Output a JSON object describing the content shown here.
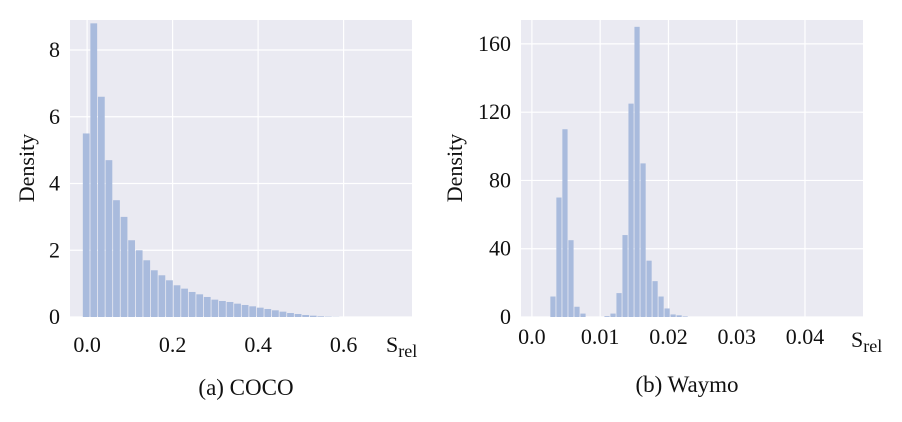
{
  "chart_data": [
    {
      "type": "bar",
      "caption": "(a) COCO",
      "ylabel": "Density",
      "xlabel": "S",
      "xlabel_sub": "rel",
      "xlim": [
        -0.04,
        0.76
      ],
      "ylim": [
        0,
        8.9
      ],
      "xticks": [
        0.0,
        0.2,
        0.4,
        0.6
      ],
      "xtick_labels": [
        "0.0",
        "0.2",
        "0.4",
        "0.6"
      ],
      "yticks": [
        0,
        2,
        4,
        6,
        8
      ],
      "ytick_labels": [
        "0",
        "2",
        "4",
        "6",
        "8"
      ],
      "grid": true,
      "bins": {
        "start": -0.01,
        "width": 0.0177,
        "values": [
          5.5,
          8.8,
          6.6,
          4.7,
          3.5,
          3.0,
          2.3,
          2.0,
          1.7,
          1.4,
          1.25,
          1.1,
          0.95,
          0.85,
          0.75,
          0.68,
          0.6,
          0.52,
          0.48,
          0.45,
          0.4,
          0.36,
          0.32,
          0.28,
          0.24,
          0.2,
          0.16,
          0.12,
          0.09,
          0.06,
          0.04,
          0.02,
          0.01,
          0.005
        ]
      }
    },
    {
      "type": "bar",
      "caption": "(b) Waymo",
      "ylabel": "Density",
      "xlabel": "S",
      "xlabel_sub": "rel",
      "xlim": [
        -0.0016,
        0.0485
      ],
      "ylim": [
        0,
        174
      ],
      "xticks": [
        0.0,
        0.01,
        0.02,
        0.03,
        0.04
      ],
      "xtick_labels": [
        "0.0",
        "0.01",
        "0.02",
        "0.03",
        "0.04"
      ],
      "yticks": [
        0,
        40,
        80,
        120,
        160
      ],
      "ytick_labels": [
        "0",
        "40",
        "80",
        "120",
        "160"
      ],
      "grid": true,
      "bins": {
        "start": 0.0027,
        "width": 0.00088,
        "values": [
          12,
          70,
          110,
          45,
          6,
          2,
          0,
          0,
          0,
          0.5,
          2,
          14,
          48,
          125,
          170,
          90,
          33,
          21,
          12,
          5,
          1.5,
          1,
          0.3
        ]
      }
    }
  ]
}
